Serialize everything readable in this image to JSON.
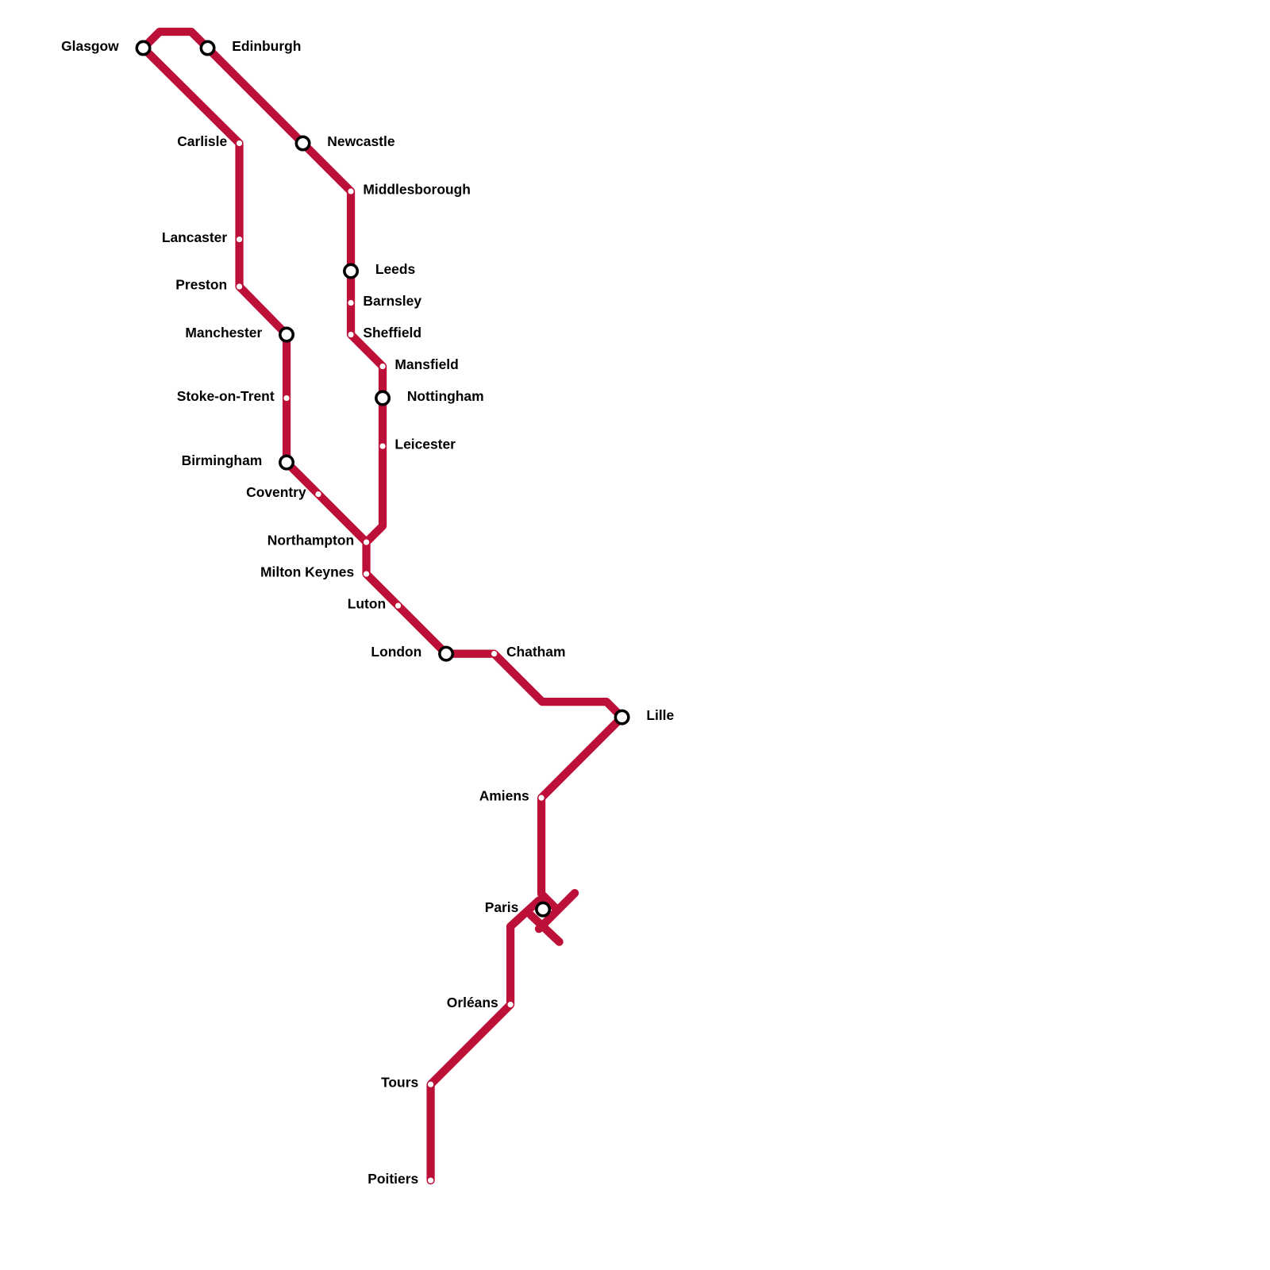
{
  "line_color": "#BD1038",
  "stations": [
    {
      "id": "glasgow",
      "name": "Glasgow",
      "interchange": true,
      "side": "left"
    },
    {
      "id": "edinburgh",
      "name": "Edinburgh",
      "interchange": true,
      "side": "right"
    },
    {
      "id": "carlisle",
      "name": "Carlisle",
      "interchange": false,
      "side": "left"
    },
    {
      "id": "newcastle",
      "name": "Newcastle",
      "interchange": true,
      "side": "right"
    },
    {
      "id": "middlesborough",
      "name": "Middlesborough",
      "interchange": false,
      "side": "right"
    },
    {
      "id": "lancaster",
      "name": "Lancaster",
      "interchange": false,
      "side": "left"
    },
    {
      "id": "leeds",
      "name": "Leeds",
      "interchange": true,
      "side": "right"
    },
    {
      "id": "preston",
      "name": "Preston",
      "interchange": false,
      "side": "left"
    },
    {
      "id": "barnsley",
      "name": "Barnsley",
      "interchange": false,
      "side": "right"
    },
    {
      "id": "manchester",
      "name": "Manchester",
      "interchange": true,
      "side": "left"
    },
    {
      "id": "sheffield",
      "name": "Sheffield",
      "interchange": false,
      "side": "right"
    },
    {
      "id": "mansfield",
      "name": "Mansfield",
      "interchange": false,
      "side": "right"
    },
    {
      "id": "stoke",
      "name": "Stoke-on-Trent",
      "interchange": false,
      "side": "left"
    },
    {
      "id": "nottingham",
      "name": "Nottingham",
      "interchange": true,
      "side": "right"
    },
    {
      "id": "leicester",
      "name": "Leicester",
      "interchange": false,
      "side": "right"
    },
    {
      "id": "birmingham",
      "name": "Birmingham",
      "interchange": true,
      "side": "left"
    },
    {
      "id": "coventry",
      "name": "Coventry",
      "interchange": false,
      "side": "left"
    },
    {
      "id": "northampton",
      "name": "Northampton",
      "interchange": false,
      "side": "left"
    },
    {
      "id": "miltonkeynes",
      "name": "Milton Keynes",
      "interchange": false,
      "side": "left"
    },
    {
      "id": "luton",
      "name": "Luton",
      "interchange": false,
      "side": "left"
    },
    {
      "id": "london",
      "name": "London",
      "interchange": true,
      "side": "left"
    },
    {
      "id": "chatham",
      "name": "Chatham",
      "interchange": false,
      "side": "right"
    },
    {
      "id": "lille",
      "name": "Lille",
      "interchange": true,
      "side": "right"
    },
    {
      "id": "amiens",
      "name": "Amiens",
      "interchange": false,
      "side": "left"
    },
    {
      "id": "paris",
      "name": "Paris",
      "interchange": true,
      "side": "left"
    },
    {
      "id": "orleans",
      "name": "Orléans",
      "interchange": false,
      "side": "left"
    },
    {
      "id": "tours",
      "name": "Tours",
      "interchange": false,
      "side": "left"
    },
    {
      "id": "poitiers",
      "name": "Poitiers",
      "interchange": false,
      "side": "left"
    }
  ]
}
